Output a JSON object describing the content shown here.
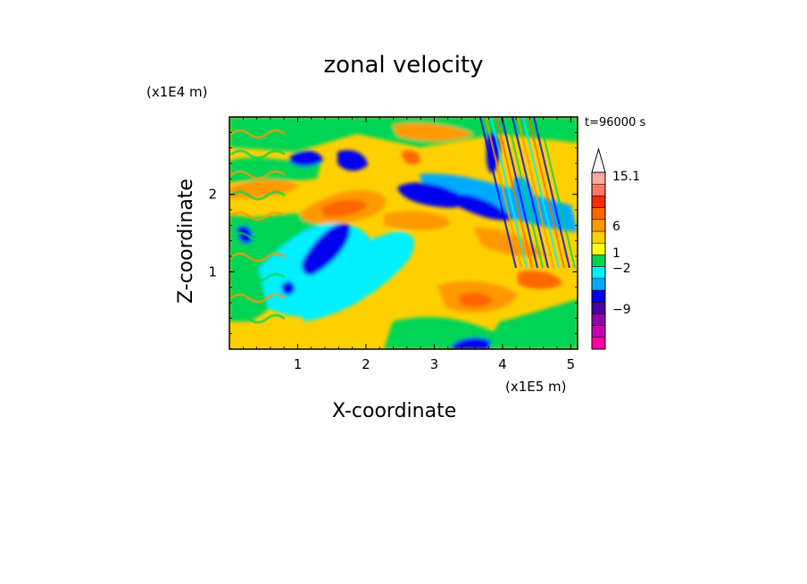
{
  "chart_data": {
    "type": "heatmap",
    "title": "zonal velocity",
    "xlabel": "X-coordinate",
    "ylabel": "Z-coordinate",
    "x_unit": "(x1E5 m)",
    "y_unit": "(x1E4 m)",
    "time_label": "t=96000 s",
    "xlim": [
      0,
      5.1
    ],
    "ylim": [
      0,
      3.0
    ],
    "x_ticks": [
      "1",
      "2",
      "3",
      "4",
      "5"
    ],
    "x_tick_values": [
      1,
      2,
      3,
      4,
      5
    ],
    "y_ticks": [
      "1",
      "2"
    ],
    "y_tick_values": [
      1,
      2
    ],
    "grid": false,
    "colorbar": {
      "levels": [
        {
          "color": "#ff00a8"
        },
        {
          "color": "#c800b4"
        },
        {
          "color": "#9600a8"
        },
        {
          "color": "#4b00a8"
        },
        {
          "color": "#0000ee"
        },
        {
          "color": "#00aaff"
        },
        {
          "color": "#00f0ff"
        },
        {
          "color": "#00d455"
        },
        {
          "color": "#ffff00"
        },
        {
          "color": "#ffd000"
        },
        {
          "color": "#ff9900"
        },
        {
          "color": "#ff6600"
        },
        {
          "color": "#ff2a00"
        },
        {
          "color": "#ff7766"
        },
        {
          "color": "#ffaaa0"
        }
      ],
      "labels": [
        "15.1",
        "6",
        "1",
        "−2",
        "−9"
      ],
      "label_values": [
        15.1,
        6,
        1,
        -2,
        -9
      ],
      "extend": "max"
    },
    "regions": [
      {
        "level": "orange",
        "x": 1.7,
        "z": 1.85,
        "value": 6
      },
      {
        "level": "orange",
        "x": 2.65,
        "z": 1.65,
        "value": 6
      },
      {
        "level": "orange",
        "x": 3.0,
        "z": 0.6,
        "value": 6
      },
      {
        "level": "orange",
        "x": 3.7,
        "z": 1.55,
        "value": 6
      },
      {
        "level": "orange",
        "x": 4.4,
        "z": 0.85,
        "value": 6
      },
      {
        "level": "blue",
        "x": 1.4,
        "z": 1.3,
        "value": -6
      },
      {
        "level": "blue",
        "x": 0.8,
        "z": 0.8,
        "value": -6
      },
      {
        "level": "blue",
        "x": 2.6,
        "z": 2.05,
        "value": -6
      },
      {
        "level": "blue",
        "x": 3.6,
        "z": 1.8,
        "value": -6
      },
      {
        "level": "blue",
        "x": 3.7,
        "z": 0.1,
        "value": -6
      },
      {
        "level": "blue",
        "x": 1.5,
        "z": 2.45,
        "value": -6
      },
      {
        "level": "blue",
        "x": 0.9,
        "z": 2.45,
        "value": -6
      }
    ]
  }
}
